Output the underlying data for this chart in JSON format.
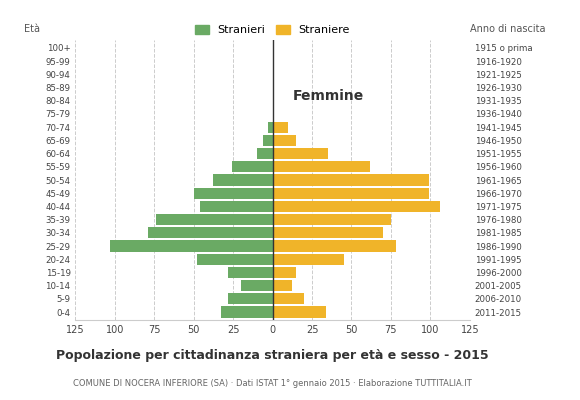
{
  "age_groups": [
    "0-4",
    "5-9",
    "10-14",
    "15-19",
    "20-24",
    "25-29",
    "30-34",
    "35-39",
    "40-44",
    "45-49",
    "50-54",
    "55-59",
    "60-64",
    "65-69",
    "70-74",
    "75-79",
    "80-84",
    "85-89",
    "90-94",
    "95-99",
    "100+"
  ],
  "birth_years": [
    "2011-2015",
    "2006-2010",
    "2001-2005",
    "1996-2000",
    "1991-1995",
    "1986-1990",
    "1981-1985",
    "1976-1980",
    "1971-1975",
    "1966-1970",
    "1961-1965",
    "1956-1960",
    "1951-1955",
    "1946-1950",
    "1941-1945",
    "1936-1940",
    "1931-1935",
    "1926-1930",
    "1921-1925",
    "1916-1920",
    "1915 o prima"
  ],
  "males": [
    33,
    28,
    20,
    28,
    48,
    103,
    79,
    74,
    46,
    50,
    38,
    26,
    10,
    6,
    3,
    0,
    0,
    0,
    0,
    0,
    0
  ],
  "females": [
    34,
    20,
    12,
    15,
    45,
    78,
    70,
    75,
    106,
    99,
    99,
    62,
    35,
    15,
    10,
    0,
    0,
    0,
    0,
    0,
    0
  ],
  "male_color": "#6aaa64",
  "female_color": "#f0b429",
  "background_color": "#ffffff",
  "grid_color": "#cccccc",
  "title": "Popolazione per cittadinanza straniera per età e sesso - 2015",
  "subtitle": "COMUNE DI NOCERA INFERIORE (SA) · Dati ISTAT 1° gennaio 2015 · Elaborazione TUTTITALIA.IT",
  "xlim": 125,
  "legend_male": "Stranieri",
  "legend_female": "Straniere",
  "label_femmine": "Femmine",
  "label_eta": "Età",
  "label_anno": "Anno di nascita"
}
